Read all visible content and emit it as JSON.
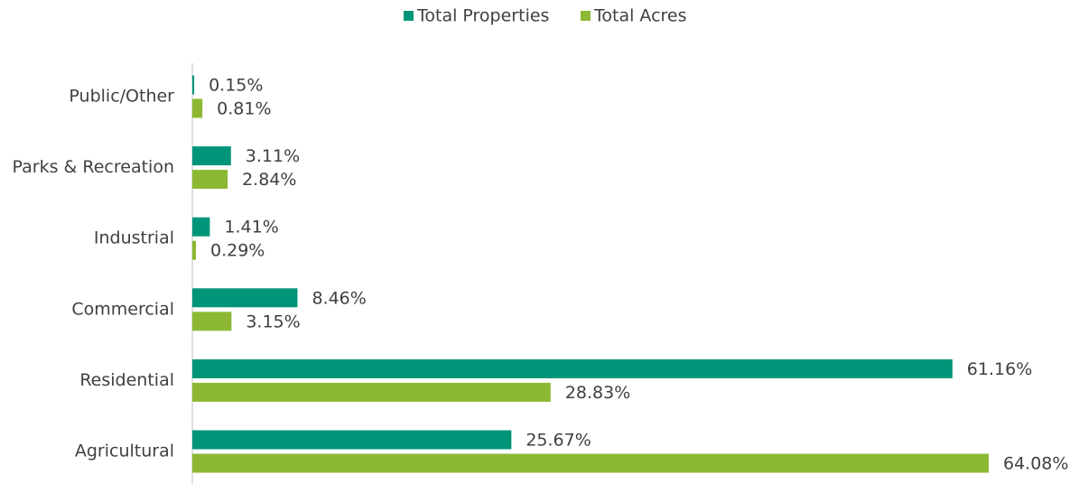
{
  "chart_data": {
    "type": "bar",
    "orientation": "horizontal",
    "categories": [
      "Public/Other",
      "Parks & Recreation",
      "Industrial",
      "Commercial",
      "Residential",
      "Agricultural"
    ],
    "series": [
      {
        "name": "Total Properties",
        "color": "#009578",
        "values": [
          0.15,
          3.11,
          1.41,
          8.46,
          61.16,
          25.67
        ],
        "value_labels": [
          "0.15%",
          "3.11%",
          "1.41%",
          "8.46%",
          "61.16%",
          "25.67%"
        ]
      },
      {
        "name": "Total Acres",
        "color": "#8cb833",
        "values": [
          0.81,
          2.84,
          0.29,
          3.15,
          28.83,
          64.08
        ],
        "value_labels": [
          "0.81%",
          "2.84%",
          "0.29%",
          "3.15%",
          "28.83%",
          "64.08%"
        ]
      }
    ],
    "legend": "top"
  }
}
